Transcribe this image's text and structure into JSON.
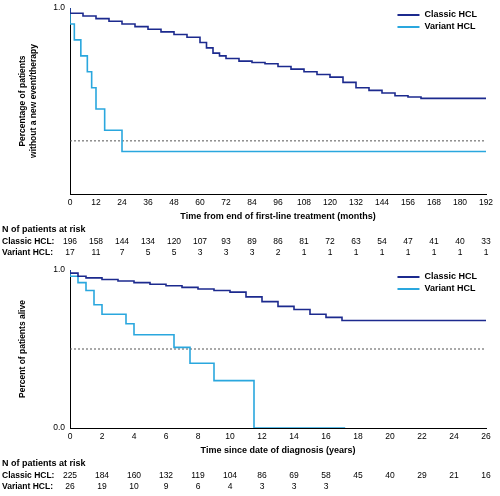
{
  "chart_data": [
    {
      "type": "line",
      "line_style": "step",
      "x_label": "Time from end of first-line treatment (months)",
      "y_label": "Percentage of patients without a new event/therapy",
      "xlim": [
        0,
        192
      ],
      "xticks": [
        0,
        12,
        24,
        36,
        48,
        60,
        72,
        84,
        96,
        108,
        120,
        132,
        144,
        156,
        168,
        180,
        192
      ],
      "ylim": [
        0.3,
        1.0
      ],
      "yticks": [
        {
          "value": 1.0,
          "label": "1.0"
        }
      ],
      "grid": false,
      "legend": "upper right",
      "median_line": 0.5,
      "series": [
        {
          "name": "Classic HCL",
          "color": "#1c2a8e",
          "x": [
            0,
            6,
            12,
            18,
            24,
            30,
            36,
            42,
            48,
            54,
            60,
            63,
            66,
            69,
            72,
            78,
            84,
            90,
            96,
            102,
            108,
            114,
            120,
            126,
            132,
            138,
            144,
            150,
            156,
            162,
            168,
            192
          ],
          "values": [
            1.0,
            0.98,
            0.97,
            0.96,
            0.95,
            0.94,
            0.93,
            0.92,
            0.91,
            0.9,
            0.89,
            0.87,
            0.85,
            0.83,
            0.82,
            0.81,
            0.8,
            0.795,
            0.79,
            0.78,
            0.77,
            0.76,
            0.75,
            0.74,
            0.72,
            0.7,
            0.69,
            0.68,
            0.67,
            0.665,
            0.66,
            0.66
          ]
        },
        {
          "name": "Variant HCL",
          "color": "#2aa7de",
          "x": [
            0,
            2,
            5,
            8,
            10,
            12,
            16,
            24,
            56,
            192
          ],
          "values": [
            1.0,
            0.94,
            0.88,
            0.82,
            0.76,
            0.7,
            0.62,
            0.54,
            0.46,
            0.46
          ]
        }
      ],
      "risk_table": {
        "title": "N of patients at risk",
        "x": [
          0,
          12,
          24,
          36,
          48,
          60,
          72,
          84,
          96,
          108,
          120,
          132,
          144,
          156,
          168,
          180,
          192
        ],
        "rows": [
          {
            "label": "Classic HCL:",
            "values": [
              196,
              158,
              144,
              134,
              120,
              107,
              93,
              89,
              86,
              81,
              72,
              63,
              54,
              47,
              41,
              40,
              33
            ]
          },
          {
            "label": "Variant HCL:",
            "values": [
              17,
              11,
              7,
              5,
              5,
              3,
              3,
              3,
              2,
              1,
              1,
              1,
              1,
              1,
              1,
              1,
              1
            ]
          }
        ]
      }
    },
    {
      "type": "line",
      "line_style": "step",
      "x_label": "Time since date of diagnosis (years)",
      "y_label": "Percent of patients alive",
      "xlim": [
        0,
        26
      ],
      "xticks": [
        0,
        2,
        4,
        6,
        8,
        10,
        12,
        14,
        16,
        18,
        20,
        22,
        24,
        26
      ],
      "ylim": [
        0,
        1.0
      ],
      "yticks": [
        {
          "value": 0,
          "label": "0.0"
        },
        {
          "value": 1.0,
          "label": "1.0"
        }
      ],
      "grid": false,
      "legend": "upper right",
      "median_line": 0.5,
      "series": [
        {
          "name": "Classic HCL",
          "color": "#1c2a8e",
          "x": [
            0,
            0.5,
            1,
            2,
            3,
            4,
            5,
            6,
            7,
            8,
            9,
            10,
            11,
            12,
            13,
            14,
            15,
            16,
            17,
            18,
            26
          ],
          "values": [
            1.0,
            0.98,
            0.96,
            0.95,
            0.94,
            0.93,
            0.92,
            0.91,
            0.9,
            0.89,
            0.88,
            0.87,
            0.86,
            0.83,
            0.8,
            0.77,
            0.75,
            0.72,
            0.7,
            0.68,
            0.68
          ]
        },
        {
          "name": "Variant HCL",
          "color": "#2aa7de",
          "x": [
            0,
            0.5,
            1,
            1.5,
            2,
            3.5,
            4,
            6.5,
            7.5,
            9,
            11.5,
            17.2
          ],
          "values": [
            1.0,
            0.96,
            0.92,
            0.87,
            0.78,
            0.72,
            0.66,
            0.59,
            0.51,
            0.41,
            0.3,
            0.0
          ]
        }
      ],
      "risk_table": {
        "title": "N of patients at risk",
        "x": [
          0,
          2,
          4,
          6,
          8,
          10,
          12,
          14,
          16,
          18,
          20,
          22,
          24,
          26
        ],
        "rows": [
          {
            "label": "Classic HCL:",
            "values": [
              225,
              184,
              160,
              132,
              119,
              104,
              86,
              69,
              58,
              45,
              40,
              29,
              21,
              16
            ]
          },
          {
            "label": "Variant HCL:",
            "values": [
              26,
              19,
              10,
              9,
              6,
              4,
              3,
              3,
              3
            ]
          }
        ]
      }
    }
  ]
}
